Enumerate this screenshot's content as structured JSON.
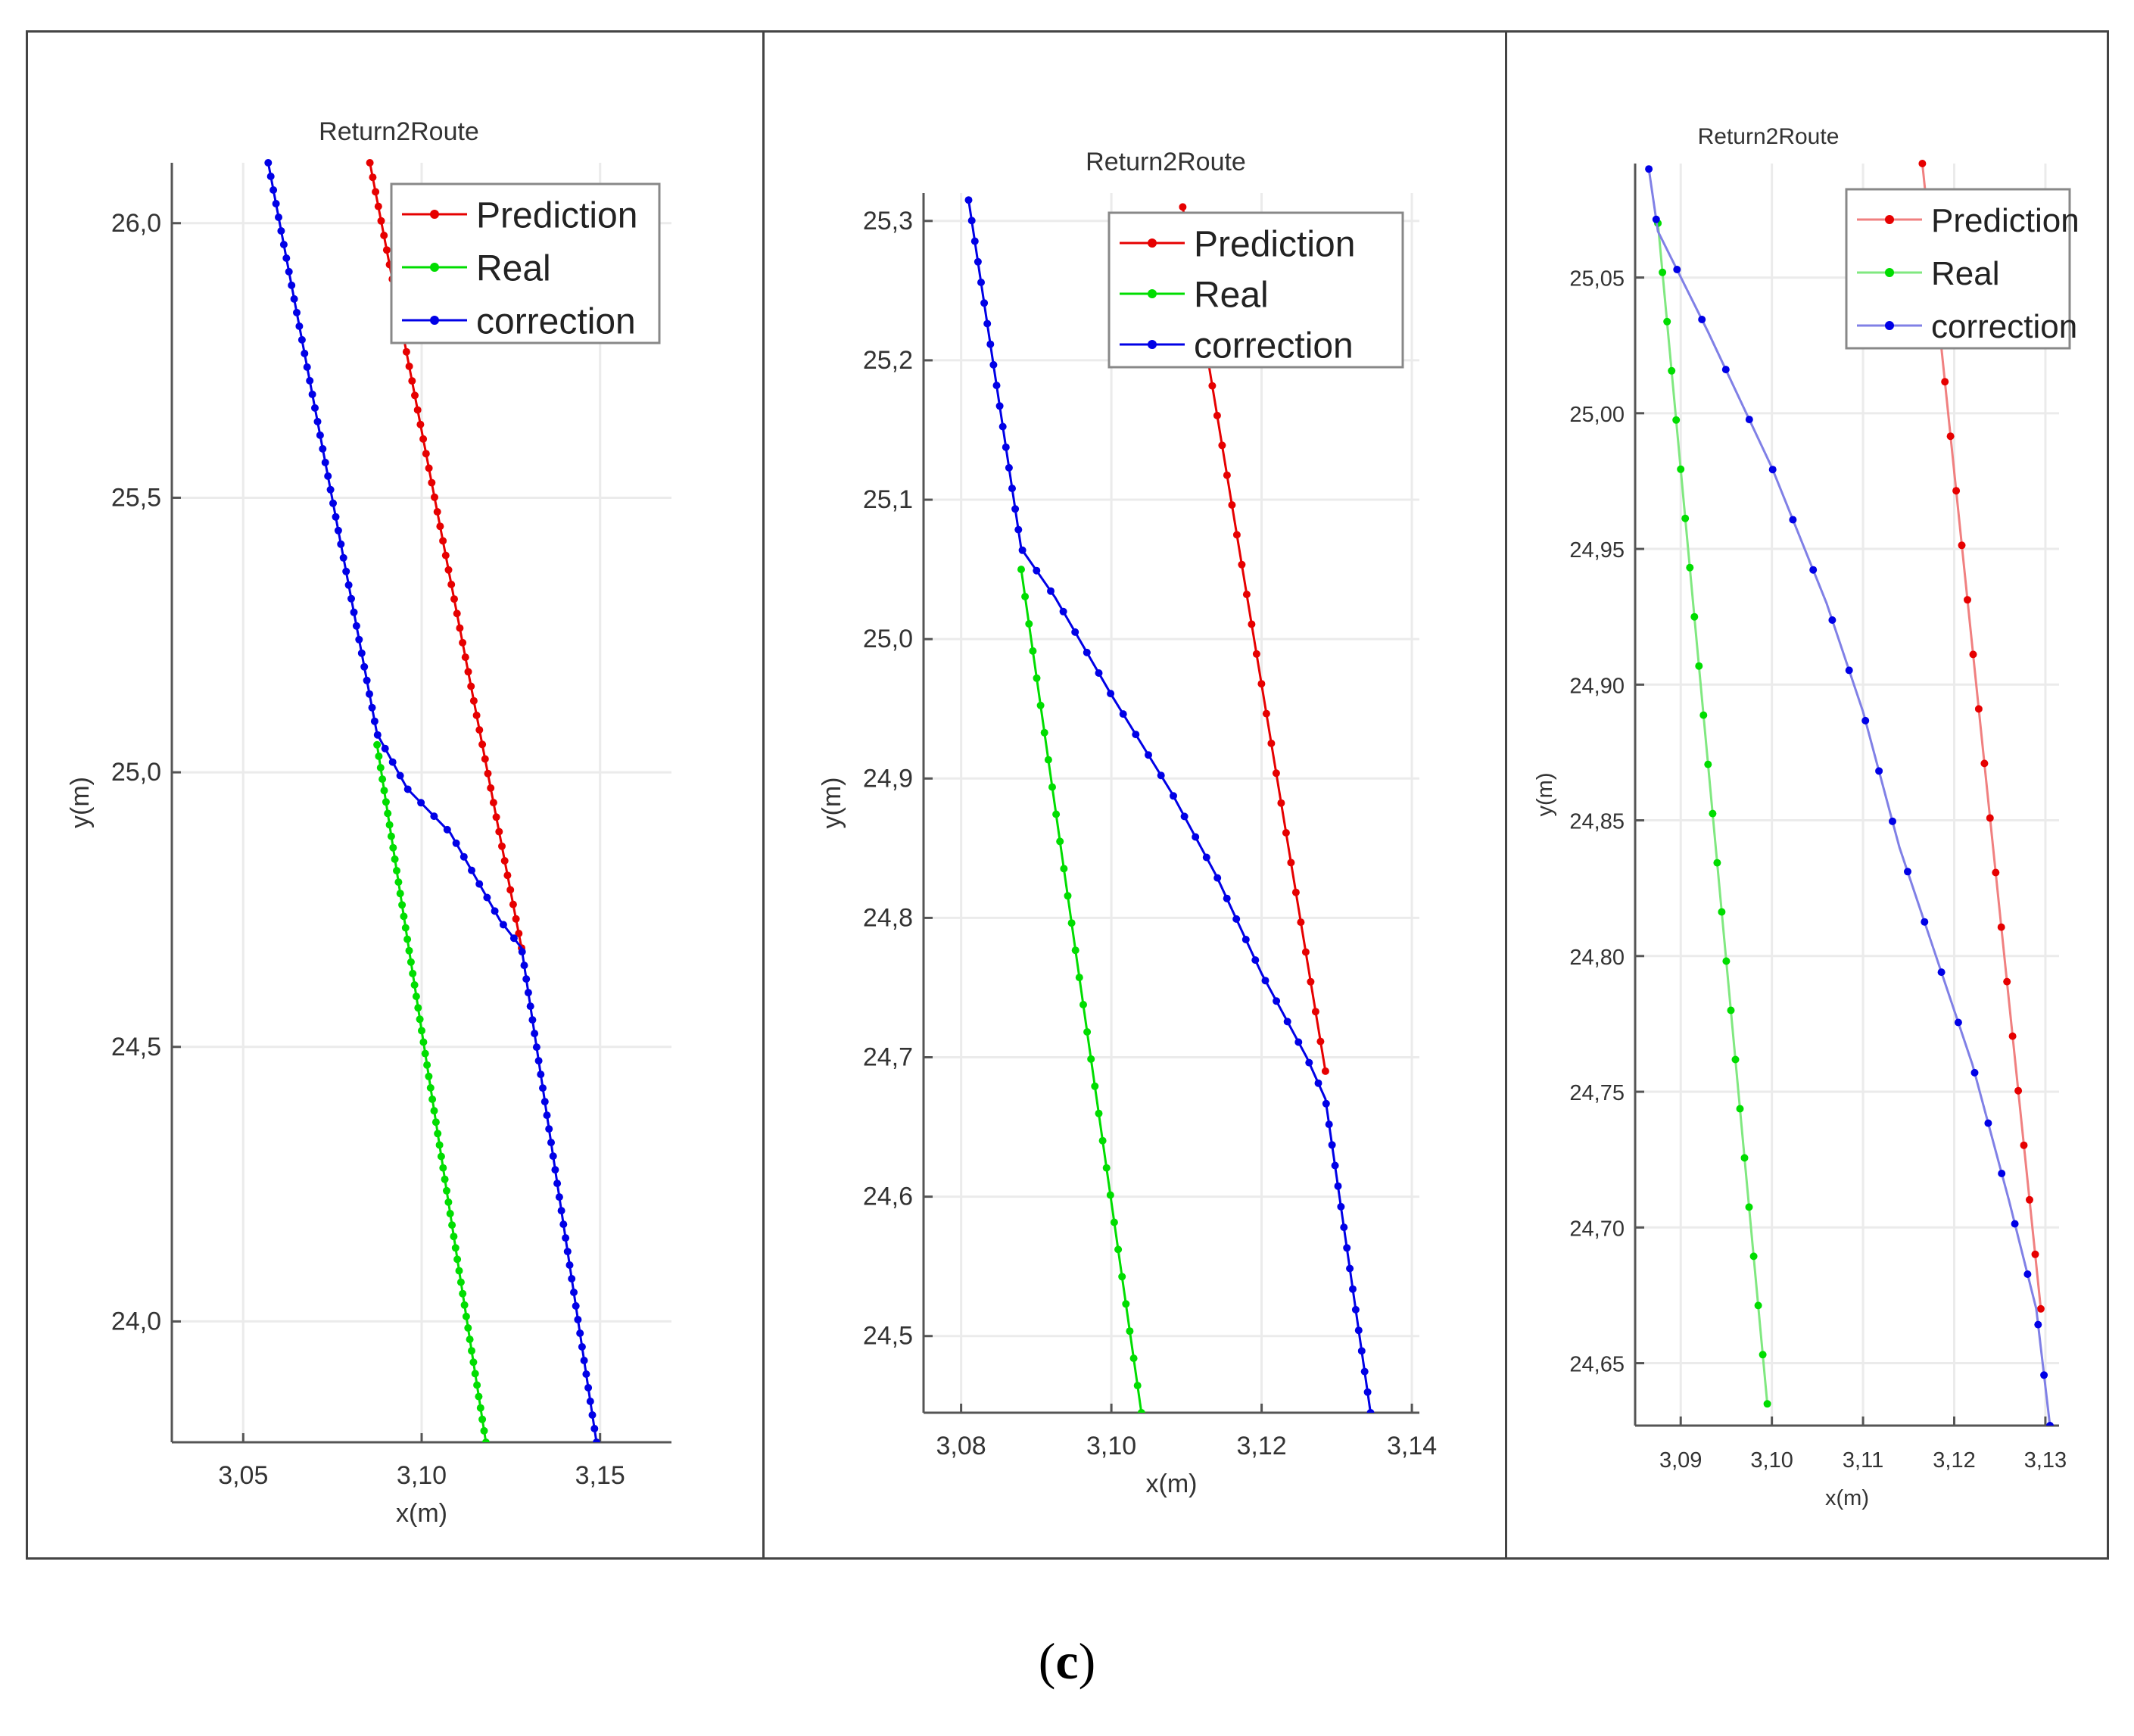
{
  "caption": {
    "open": "(",
    "letter": "c",
    "close": ")"
  },
  "colors": {
    "prediction": "#e60000",
    "real": "#00dd00",
    "correction": "#0000e6",
    "correction_line": "#7a7ae6",
    "axis": "#555555",
    "grid": "#ebebeb"
  },
  "chart_data": [
    {
      "type": "line",
      "title": "Return2Route",
      "xlabel": "x(m)",
      "ylabel": "y(m)",
      "xlim": [
        3.03,
        3.17
      ],
      "ylim": [
        23.78,
        26.11
      ],
      "xticks": [
        3.05,
        3.1,
        3.15
      ],
      "xtick_labels": [
        "3,05",
        "3,10",
        "3,15"
      ],
      "yticks": [
        24.0,
        24.5,
        25.0,
        25.5,
        26.0
      ],
      "ytick_labels": [
        "24,0",
        "24,5",
        "25,0",
        "25,5",
        "26,0"
      ],
      "legend": {
        "location": "top-right",
        "entries": [
          "Prediction",
          "Real",
          "correction"
        ]
      },
      "series": [
        {
          "name": "Prediction",
          "color": "#e60000",
          "line": "#e60000",
          "n": 55,
          "anchors": [
            [
              3.0855,
              26.11
            ],
            [
              3.128,
              24.68
            ]
          ]
        },
        {
          "name": "Real",
          "color": "#00dd00",
          "line": "#00dd00",
          "n": 62,
          "anchors": [
            [
              3.0875,
              25.05
            ],
            [
              3.118,
              23.78
            ]
          ]
        },
        {
          "name": "correction",
          "color": "#0000e6",
          "line": "#0000e6",
          "n": 95,
          "anchors": [
            [
              3.057,
              26.11
            ],
            [
              3.0875,
              25.07
            ],
            [
              3.096,
              24.97
            ],
            [
              3.108,
              24.89
            ],
            [
              3.122,
              24.73
            ],
            [
              3.128,
              24.68
            ],
            [
              3.149,
              23.78
            ]
          ]
        }
      ]
    },
    {
      "type": "line",
      "title": "Return2Route",
      "xlabel": "x(m)",
      "ylabel": "y(m)",
      "xlim": [
        3.075,
        3.141
      ],
      "ylim": [
        24.445,
        25.32
      ],
      "xticks": [
        3.08,
        3.1,
        3.12,
        3.14
      ],
      "xtick_labels": [
        "3,08",
        "3,10",
        "3,12",
        "3,14"
      ],
      "yticks": [
        24.5,
        24.6,
        24.7,
        24.8,
        24.9,
        25.0,
        25.1,
        25.2,
        25.3
      ],
      "ytick_labels": [
        "24,5",
        "24,6",
        "24,7",
        "24,8",
        "24,9",
        "25,0",
        "25,1",
        "25,2",
        "25,3"
      ],
      "legend": {
        "location": "top-right",
        "entries": [
          "Prediction",
          "Real",
          "correction"
        ]
      },
      "series": [
        {
          "name": "Prediction",
          "color": "#e60000",
          "line": "#e60000",
          "n": 30,
          "anchors": [
            [
              3.1095,
              25.31
            ],
            [
              3.1285,
              24.69
            ]
          ]
        },
        {
          "name": "Real",
          "color": "#00dd00",
          "line": "#00dd00",
          "n": 32,
          "anchors": [
            [
              3.088,
              25.05
            ],
            [
              3.104,
              24.445
            ]
          ]
        },
        {
          "name": "correction",
          "color": "#0000e6",
          "line": "#0000e6",
          "n": 60,
          "anchors": [
            [
              3.081,
              25.315
            ],
            [
              3.088,
              25.065
            ],
            [
              3.0925,
              25.03
            ],
            [
              3.1,
              24.96
            ],
            [
              3.108,
              24.89
            ],
            [
              3.114,
              24.83
            ],
            [
              3.12,
              24.76
            ],
            [
              3.126,
              24.7
            ],
            [
              3.1285,
              24.67
            ],
            [
              3.1345,
              24.445
            ]
          ]
        }
      ]
    },
    {
      "type": "line",
      "title": "Return2Route",
      "xlabel": "x(m)",
      "ylabel": "y(m)",
      "xlim": [
        3.085,
        3.1315
      ],
      "ylim": [
        24.627,
        25.092
      ],
      "xticks": [
        3.09,
        3.1,
        3.11,
        3.12,
        3.13
      ],
      "xtick_labels": [
        "3,09",
        "3,10",
        "3,11",
        "3,12",
        "3,13"
      ],
      "yticks": [
        24.65,
        24.7,
        24.75,
        24.8,
        24.85,
        24.9,
        24.95,
        25.0,
        25.05
      ],
      "ytick_labels": [
        "24,65",
        "24,70",
        "24,75",
        "24,80",
        "24,85",
        "24,90",
        "24,95",
        "25,00",
        "25,05"
      ],
      "legend": {
        "location": "top-right",
        "entries": [
          "Prediction",
          "Real",
          "correction"
        ]
      },
      "series": [
        {
          "name": "Prediction",
          "color": "#e60000",
          "line": "#f08080",
          "n": 22,
          "anchors": [
            [
              3.1165,
              25.092
            ],
            [
              3.1295,
              24.67
            ]
          ]
        },
        {
          "name": "Real",
          "color": "#00dd00",
          "line": "#80e880",
          "n": 25,
          "anchors": [
            [
              3.0875,
              25.07
            ],
            [
              3.0995,
              24.635
            ]
          ]
        },
        {
          "name": "correction",
          "color": "#0000e6",
          "line": "#8080e6",
          "n": 26,
          "anchors": [
            [
              3.0865,
              25.09
            ],
            [
              3.0875,
              25.067
            ],
            [
              3.093,
              25.03
            ],
            [
              3.1,
              24.98
            ],
            [
              3.106,
              24.93
            ],
            [
              3.11,
              24.89
            ],
            [
              3.114,
              24.84
            ],
            [
              3.118,
              24.8
            ],
            [
              3.122,
              24.76
            ],
            [
              3.126,
              24.71
            ],
            [
              3.129,
              24.67
            ],
            [
              3.1305,
              24.627
            ]
          ]
        }
      ]
    }
  ]
}
